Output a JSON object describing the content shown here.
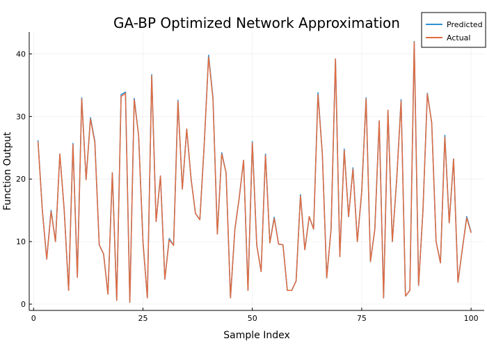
{
  "chart_data": {
    "type": "line",
    "title": "GA-BP Optimized Network Approximation",
    "xlabel": "Sample Index",
    "ylabel": "Function Output",
    "xlim": [
      -1,
      103
    ],
    "ylim": [
      -1,
      43.5
    ],
    "xticks": [
      0,
      25,
      50,
      75,
      100
    ],
    "xtick_labels": [
      "0",
      "25",
      "50",
      "75",
      "100"
    ],
    "yticks": [
      0,
      10,
      20,
      30,
      40
    ],
    "ytick_labels": [
      "0",
      "10",
      "20",
      "30",
      "40"
    ],
    "grid": true,
    "legend": "top-right",
    "series": [
      {
        "name": "Predicted",
        "color": "#2b91d6",
        "x": [
          1,
          2,
          3,
          4,
          5,
          6,
          7,
          8,
          9,
          10,
          11,
          12,
          13,
          14,
          15,
          16,
          17,
          18,
          19,
          20,
          21,
          22,
          23,
          24,
          25,
          26,
          27,
          28,
          29,
          30,
          31,
          32,
          33,
          34,
          35,
          36,
          37,
          38,
          39,
          40,
          41,
          42,
          43,
          44,
          45,
          46,
          47,
          48,
          49,
          50,
          51,
          52,
          53,
          54,
          55,
          56,
          57,
          58,
          59,
          60,
          61,
          62,
          63,
          64,
          65,
          66,
          67,
          68,
          69,
          70,
          71,
          72,
          73,
          74,
          75,
          76,
          77,
          78,
          79,
          80,
          81,
          82,
          83,
          84,
          85,
          86,
          87,
          88,
          89,
          90,
          91,
          92,
          93,
          94,
          95,
          96,
          97,
          98,
          99,
          100
        ],
        "values": [
          26.2,
          15,
          7.2,
          15,
          10,
          24,
          15,
          2.2,
          25.7,
          4.3,
          33,
          19.9,
          29.8,
          26,
          9.5,
          8,
          1.6,
          21,
          0.6,
          33.5,
          33.9,
          0.3,
          32.9,
          27,
          10,
          1,
          36.7,
          13.2,
          20.5,
          4,
          10.5,
          9.4,
          32.6,
          18.4,
          28,
          20,
          14.5,
          13.5,
          25.5,
          39.8,
          33,
          11.2,
          24.2,
          21,
          1,
          11.9,
          17,
          23,
          2.2,
          26,
          9.5,
          5.2,
          24,
          9.8,
          13.9,
          9.6,
          9.5,
          2.2,
          2.2,
          3.7,
          17.5,
          8.7,
          14,
          12,
          33.8,
          24,
          4.2,
          12,
          39.2,
          7.6,
          24.8,
          14,
          21.8,
          10,
          18,
          33,
          6.8,
          12,
          29.3,
          1,
          31,
          10,
          20,
          32.7,
          1.3,
          2.2,
          42,
          3,
          15,
          33.7,
          29,
          10,
          6.6,
          27,
          13,
          23.2,
          3.5,
          8.8,
          14,
          11.5
        ]
      },
      {
        "name": "Actual",
        "color": "#e26b3f",
        "x": [
          1,
          2,
          3,
          4,
          5,
          6,
          7,
          8,
          9,
          10,
          11,
          12,
          13,
          14,
          15,
          16,
          17,
          18,
          19,
          20,
          21,
          22,
          23,
          24,
          25,
          26,
          27,
          28,
          29,
          30,
          31,
          32,
          33,
          34,
          35,
          36,
          37,
          38,
          39,
          40,
          41,
          42,
          43,
          44,
          45,
          46,
          47,
          48,
          49,
          50,
          51,
          52,
          53,
          54,
          55,
          56,
          57,
          58,
          59,
          60,
          61,
          62,
          63,
          64,
          65,
          66,
          67,
          68,
          69,
          70,
          71,
          72,
          73,
          74,
          75,
          76,
          77,
          78,
          79,
          80,
          81,
          82,
          83,
          84,
          85,
          86,
          87,
          88,
          89,
          90,
          91,
          92,
          93,
          94,
          95,
          96,
          97,
          98,
          99,
          100
        ],
        "values": [
          26,
          15,
          7.2,
          14.8,
          10,
          24,
          15,
          2.2,
          25.5,
          4.3,
          32.8,
          19.9,
          29.6,
          25.8,
          9.5,
          8,
          1.6,
          21,
          0.6,
          33.2,
          33.7,
          0.3,
          32.7,
          27,
          10,
          1,
          36.5,
          13.2,
          20.5,
          4,
          10.3,
          9.4,
          32.4,
          18.4,
          28,
          20,
          14.5,
          13.5,
          25.5,
          39.5,
          32.8,
          11.2,
          24,
          21,
          1,
          11.9,
          17,
          23,
          2.2,
          25.8,
          9.5,
          5.2,
          23.8,
          9.8,
          13.7,
          9.6,
          9.5,
          2.2,
          2.2,
          3.7,
          17.3,
          8.7,
          14,
          12,
          33.5,
          24,
          4.2,
          12,
          39.2,
          7.6,
          24.6,
          14,
          21.6,
          10,
          18,
          32.8,
          6.8,
          12,
          29.3,
          1,
          31,
          10,
          20,
          32.5,
          1.3,
          2.2,
          41.9,
          3,
          15,
          33.6,
          29,
          10,
          6.6,
          26.7,
          13,
          23.2,
          3.5,
          8.8,
          13.8,
          11.4
        ]
      }
    ]
  }
}
